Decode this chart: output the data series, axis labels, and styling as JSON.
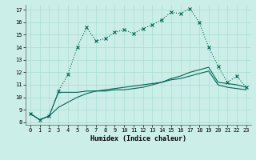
{
  "xlabel": "Humidex (Indice chaleur)",
  "bg_color": "#cceee8",
  "grid_color": "#aaddcc",
  "line_color": "#006655",
  "xlim": [
    -0.5,
    23.5
  ],
  "ylim": [
    7.8,
    17.4
  ],
  "xticks": [
    0,
    1,
    2,
    3,
    4,
    5,
    6,
    7,
    8,
    9,
    10,
    11,
    12,
    13,
    14,
    15,
    16,
    17,
    18,
    19,
    20,
    21,
    22,
    23
  ],
  "yticks": [
    8,
    9,
    10,
    11,
    12,
    13,
    14,
    15,
    16,
    17
  ],
  "line1_x": [
    0,
    1,
    2,
    3,
    4,
    5,
    6,
    7,
    8,
    9,
    10,
    11,
    12,
    13,
    14,
    15,
    16,
    17,
    18,
    19,
    20,
    21,
    22,
    23
  ],
  "line1_y": [
    8.7,
    8.2,
    8.5,
    10.5,
    11.8,
    14.0,
    15.6,
    14.5,
    14.7,
    15.2,
    15.4,
    15.1,
    15.5,
    15.8,
    16.2,
    16.8,
    16.7,
    17.1,
    16.0,
    14.0,
    12.5,
    11.2,
    11.7,
    10.8
  ],
  "line2_x": [
    0,
    1,
    2,
    3,
    4,
    5,
    6,
    7,
    8,
    9,
    10,
    11,
    12,
    13,
    14,
    15,
    16,
    17,
    18,
    19,
    20,
    21,
    22,
    23
  ],
  "line2_y": [
    8.7,
    8.2,
    8.5,
    10.4,
    10.4,
    10.4,
    10.5,
    10.5,
    10.5,
    10.6,
    10.6,
    10.7,
    10.8,
    11.0,
    11.2,
    11.5,
    11.7,
    12.0,
    12.2,
    12.4,
    11.2,
    11.1,
    11.0,
    10.8
  ],
  "line3_x": [
    0,
    1,
    2,
    3,
    4,
    5,
    6,
    7,
    8,
    9,
    10,
    11,
    12,
    13,
    14,
    15,
    16,
    17,
    18,
    19,
    20,
    21,
    22,
    23
  ],
  "line3_y": [
    8.7,
    8.2,
    8.5,
    9.2,
    9.6,
    10.0,
    10.3,
    10.5,
    10.6,
    10.7,
    10.8,
    10.9,
    11.0,
    11.1,
    11.2,
    11.4,
    11.5,
    11.7,
    11.9,
    12.1,
    11.0,
    10.8,
    10.7,
    10.6
  ]
}
